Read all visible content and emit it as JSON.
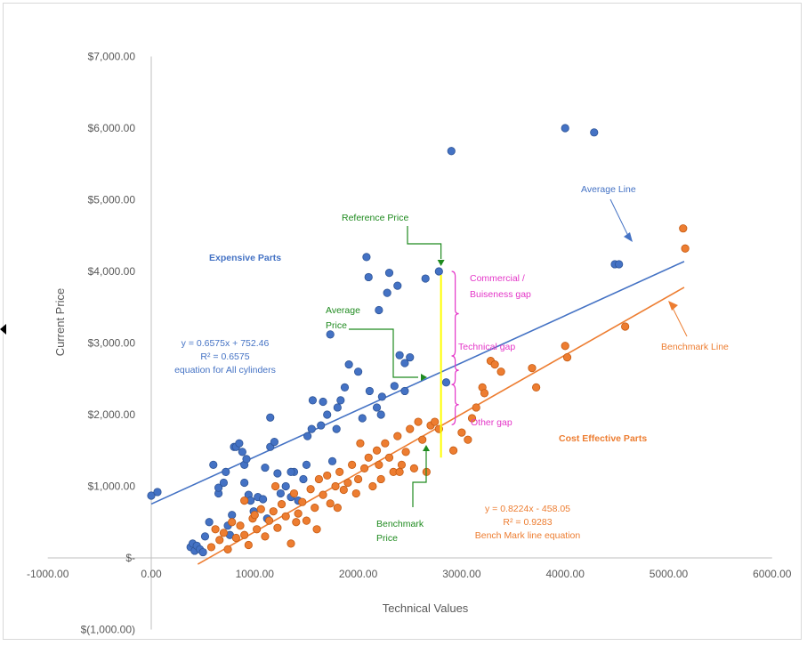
{
  "chart_data": {
    "type": "scatter",
    "xlabel": "Technical Values",
    "ylabel": "Current Price",
    "xlim": [
      -1000,
      6000
    ],
    "ylim": [
      -1000,
      7000
    ],
    "x_ticks": [
      "-1000.00",
      "0.00",
      "1000.00",
      "2000.00",
      "3000.00",
      "4000.00",
      "5000.00",
      "6000.00"
    ],
    "y_ticks": [
      "$(1,000.00)",
      "$-",
      "$1,000.00",
      "$2,000.00",
      "$3,000.00",
      "$4,000.00",
      "$5,000.00",
      "$6,000.00",
      "$7,000.00"
    ],
    "grid": false,
    "colors": {
      "expensive": "#4472c4",
      "expensive_edge": "#2f5597",
      "cost": "#ed7d31",
      "cost_edge": "#c55a11",
      "green": "#1e8a1e",
      "magenta": "#e436c8",
      "yellow": "#ffff00"
    },
    "series": [
      {
        "points": [
          [
            0,
            870
          ],
          [
            60,
            920
          ],
          [
            380,
            150
          ],
          [
            400,
            200
          ],
          [
            420,
            100
          ],
          [
            440,
            170
          ],
          [
            470,
            120
          ],
          [
            500,
            80
          ],
          [
            520,
            300
          ],
          [
            560,
            500
          ],
          [
            600,
            1300
          ],
          [
            650,
            900
          ],
          [
            650,
            980
          ],
          [
            700,
            1050
          ],
          [
            720,
            1200
          ],
          [
            740,
            450
          ],
          [
            760,
            320
          ],
          [
            780,
            600
          ],
          [
            800,
            1550
          ],
          [
            820,
            1550
          ],
          [
            850,
            1600
          ],
          [
            880,
            1480
          ],
          [
            900,
            1300
          ],
          [
            900,
            1050
          ],
          [
            920,
            1380
          ],
          [
            940,
            880
          ],
          [
            960,
            800
          ],
          [
            990,
            650
          ],
          [
            1030,
            850
          ],
          [
            1080,
            820
          ],
          [
            1100,
            1260
          ],
          [
            1120,
            550
          ],
          [
            1150,
            1550
          ],
          [
            1150,
            1960
          ],
          [
            1190,
            1620
          ],
          [
            1220,
            1180
          ],
          [
            1250,
            900
          ],
          [
            1300,
            1000
          ],
          [
            1350,
            850
          ],
          [
            1380,
            1200
          ],
          [
            1420,
            800
          ],
          [
            1470,
            1100
          ],
          [
            1500,
            1300
          ],
          [
            1510,
            1700
          ],
          [
            1550,
            1800
          ],
          [
            1560,
            2200
          ],
          [
            1640,
            1850
          ],
          [
            1660,
            2180
          ],
          [
            1700,
            2000
          ],
          [
            1730,
            3120
          ],
          [
            1750,
            1350
          ],
          [
            1790,
            1800
          ],
          [
            1800,
            2100
          ],
          [
            1830,
            2200
          ],
          [
            1870,
            2380
          ],
          [
            1910,
            2700
          ],
          [
            2000,
            2600
          ],
          [
            2040,
            1950
          ],
          [
            2080,
            4200
          ],
          [
            2100,
            3920
          ],
          [
            2110,
            2330
          ],
          [
            2180,
            2100
          ],
          [
            2200,
            3460
          ],
          [
            2220,
            2000
          ],
          [
            2230,
            2250
          ],
          [
            2280,
            3700
          ],
          [
            2300,
            3980
          ],
          [
            2350,
            2400
          ],
          [
            2380,
            3800
          ],
          [
            2400,
            2830
          ],
          [
            2450,
            2330
          ],
          [
            2450,
            2720
          ],
          [
            2500,
            2800
          ],
          [
            2650,
            3900
          ],
          [
            2780,
            4000
          ],
          [
            2900,
            5680
          ],
          [
            4000,
            6000
          ],
          [
            4280,
            5940
          ],
          [
            4480,
            4100
          ],
          [
            4520,
            4100
          ],
          [
            2850,
            2450
          ],
          [
            1350,
            1200
          ]
        ],
        "trendline": {
          "slope": 0.6575,
          "intercept": 752.46
        }
      },
      {
        "points": [
          [
            580,
            150
          ],
          [
            620,
            400
          ],
          [
            660,
            250
          ],
          [
            700,
            350
          ],
          [
            740,
            120
          ],
          [
            780,
            500
          ],
          [
            820,
            280
          ],
          [
            860,
            450
          ],
          [
            900,
            320
          ],
          [
            940,
            180
          ],
          [
            980,
            550
          ],
          [
            1020,
            400
          ],
          [
            1060,
            680
          ],
          [
            1100,
            300
          ],
          [
            1140,
            520
          ],
          [
            1180,
            650
          ],
          [
            1220,
            420
          ],
          [
            1260,
            750
          ],
          [
            1300,
            580
          ],
          [
            1350,
            200
          ],
          [
            1380,
            900
          ],
          [
            1420,
            620
          ],
          [
            1460,
            780
          ],
          [
            1500,
            520
          ],
          [
            1540,
            960
          ],
          [
            1580,
            700
          ],
          [
            1620,
            1100
          ],
          [
            1660,
            880
          ],
          [
            1700,
            1150
          ],
          [
            1730,
            760
          ],
          [
            1780,
            1000
          ],
          [
            1820,
            1200
          ],
          [
            1860,
            950
          ],
          [
            1900,
            1050
          ],
          [
            1940,
            1300
          ],
          [
            1980,
            900
          ],
          [
            2020,
            1600
          ],
          [
            2060,
            1250
          ],
          [
            2100,
            1400
          ],
          [
            2140,
            1000
          ],
          [
            2180,
            1500
          ],
          [
            2220,
            1100
          ],
          [
            2260,
            1600
          ],
          [
            2300,
            1400
          ],
          [
            2340,
            1200
          ],
          [
            2380,
            1700
          ],
          [
            2420,
            1300
          ],
          [
            2460,
            1480
          ],
          [
            2500,
            1800
          ],
          [
            2540,
            1250
          ],
          [
            2580,
            1900
          ],
          [
            2620,
            1650
          ],
          [
            2660,
            1200
          ],
          [
            2700,
            1850
          ],
          [
            2740,
            1900
          ],
          [
            2780,
            1800
          ],
          [
            2920,
            1500
          ],
          [
            3000,
            1750
          ],
          [
            3060,
            1650
          ],
          [
            3100,
            1950
          ],
          [
            3140,
            2100
          ],
          [
            3200,
            2380
          ],
          [
            3220,
            2300
          ],
          [
            3280,
            2750
          ],
          [
            3320,
            2700
          ],
          [
            3380,
            2600
          ],
          [
            3680,
            2650
          ],
          [
            3720,
            2380
          ],
          [
            4000,
            2960
          ],
          [
            4020,
            2800
          ],
          [
            4580,
            3230
          ],
          [
            5140,
            4600
          ],
          [
            5160,
            4320
          ],
          [
            900,
            800
          ],
          [
            1000,
            600
          ],
          [
            1200,
            1000
          ],
          [
            1400,
            500
          ],
          [
            1600,
            400
          ],
          [
            1800,
            700
          ],
          [
            2000,
            1100
          ],
          [
            2200,
            1300
          ],
          [
            2400,
            1200
          ]
        ],
        "trendline": {
          "slope": 0.8224,
          "intercept": -458.05
        }
      }
    ],
    "annotations": {
      "expensive_parts": "Expensive Parts",
      "cost_effective_parts": "Cost Effective Parts",
      "average_line": "Average Line",
      "benchmark_line": "Benchmark Line",
      "reference_price": "Reference Price",
      "average_price_1": "Average",
      "average_price_2": "Price",
      "benchmark_price_1": "Benchmark",
      "benchmark_price_2": "Price",
      "commercial_gap_1": "Commercial /",
      "commercial_gap_2": "Buiseness gap",
      "technical_gap": "Technical gap",
      "other_gap": "Other gap",
      "avg_eq_1": "y = 0.6575x + 752.46",
      "avg_eq_2": "R² = 0.6575",
      "avg_eq_3": "equation for All cylinders",
      "bench_eq_1": "y = 0.8224x  - 458.05",
      "bench_eq_2": "R² = 0.9283",
      "bench_eq_3": "Bench Mark line equation"
    },
    "reference_x": 2800
  }
}
